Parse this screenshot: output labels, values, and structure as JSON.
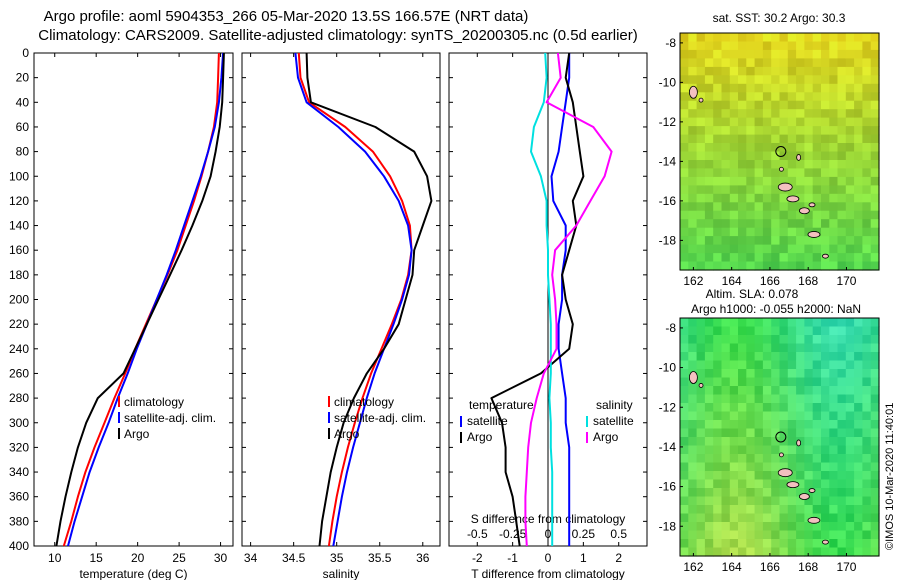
{
  "header": {
    "title_line1": "Argo profile: aoml 5904353_266 05-Mar-2020 13.5S 166.57E (NRT data)",
    "title_line2": "Climatology: CARS2009. Satellite-adjusted climatology: synTS_20200305.nc (0.5d earlier)"
  },
  "depth_axis": {
    "ticks": [
      "0",
      "20",
      "40",
      "60",
      "80",
      "100",
      "120",
      "140",
      "160",
      "180",
      "200",
      "220",
      "240",
      "260",
      "280",
      "300",
      "320",
      "340",
      "360",
      "380",
      "400"
    ]
  },
  "chart_data": [
    {
      "type": "line",
      "panel": "temperature",
      "xlabel": "temperature (deg C)",
      "ylabel": "depth",
      "xlim": [
        7.5,
        31.5
      ],
      "ylim": [
        0,
        400
      ],
      "xticks": [
        10,
        15,
        20,
        25,
        30
      ],
      "series": [
        {
          "name": "climatology",
          "color": "#ff0000",
          "x": [
            29.8,
            29.7,
            29.6,
            29.2,
            28.5,
            27.7,
            26.8,
            25.8,
            24.8,
            23.6,
            22.3,
            21.0,
            19.7,
            18.5,
            17.2,
            16.0,
            14.8,
            13.7,
            12.8,
            12.0,
            11.1
          ],
          "y": [
            0,
            20,
            40,
            60,
            80,
            100,
            120,
            140,
            160,
            180,
            200,
            220,
            240,
            260,
            280,
            300,
            320,
            340,
            360,
            380,
            400
          ]
        },
        {
          "name": "satellite-adj. clim.",
          "color": "#0000ff",
          "x": [
            30.3,
            30.1,
            29.8,
            29.3,
            28.5,
            27.6,
            26.6,
            25.6,
            24.6,
            23.5,
            22.3,
            21.1,
            19.9,
            18.8,
            17.6,
            16.5,
            15.3,
            14.2,
            13.3,
            12.4,
            11.6
          ],
          "y": [
            0,
            20,
            40,
            60,
            80,
            100,
            120,
            140,
            160,
            180,
            200,
            220,
            240,
            260,
            280,
            300,
            320,
            340,
            360,
            380,
            400
          ]
        },
        {
          "name": "Argo",
          "color": "#000000",
          "x": [
            30.4,
            30.3,
            30.2,
            29.9,
            29.4,
            28.8,
            27.8,
            26.6,
            25.3,
            23.9,
            22.5,
            21.1,
            19.7,
            18.3,
            15.2,
            13.8,
            12.8,
            12.0,
            11.3,
            10.7,
            10.2
          ],
          "y": [
            0,
            20,
            40,
            60,
            80,
            100,
            120,
            140,
            160,
            180,
            200,
            220,
            240,
            260,
            280,
            300,
            320,
            340,
            360,
            380,
            400
          ]
        }
      ],
      "legend": [
        "climatology",
        "satellite-adj. clim.",
        "Argo"
      ]
    },
    {
      "type": "line",
      "panel": "salinity",
      "xlabel": "salinity",
      "ylabel": "depth",
      "xlim": [
        33.9,
        36.2
      ],
      "ylim": [
        0,
        400
      ],
      "xticks": [
        34,
        34.5,
        35,
        35.5,
        36
      ],
      "xticklabels": [
        "34",
        "34.5",
        "35",
        "35.5",
        "36"
      ],
      "series": [
        {
          "name": "climatology",
          "color": "#ff0000",
          "x": [
            34.56,
            34.58,
            34.68,
            35.1,
            35.42,
            35.62,
            35.76,
            35.85,
            35.87,
            35.83,
            35.75,
            35.64,
            35.52,
            35.4,
            35.3,
            35.21,
            35.13,
            35.06,
            35.0,
            34.95,
            34.91
          ],
          "y": [
            0,
            20,
            40,
            60,
            80,
            100,
            120,
            140,
            160,
            180,
            200,
            220,
            240,
            260,
            280,
            300,
            320,
            340,
            360,
            380,
            400
          ]
        },
        {
          "name": "satellite-adj. clim.",
          "color": "#0000ff",
          "x": [
            34.52,
            34.55,
            34.65,
            35.02,
            35.33,
            35.55,
            35.72,
            35.83,
            35.87,
            35.84,
            35.76,
            35.66,
            35.55,
            35.44,
            35.35,
            35.27,
            35.19,
            35.12,
            35.06,
            35.01,
            34.96
          ],
          "y": [
            0,
            20,
            40,
            60,
            80,
            100,
            120,
            140,
            160,
            180,
            200,
            220,
            240,
            260,
            280,
            300,
            320,
            340,
            360,
            380,
            400
          ]
        },
        {
          "name": "Argo",
          "color": "#000000",
          "x": [
            34.65,
            34.66,
            34.7,
            35.45,
            35.9,
            36.05,
            36.1,
            36.0,
            35.9,
            35.88,
            35.8,
            35.72,
            35.55,
            35.35,
            35.2,
            35.08,
            35.0,
            34.93,
            34.88,
            34.83,
            34.8
          ],
          "y": [
            0,
            20,
            40,
            60,
            80,
            100,
            120,
            140,
            160,
            180,
            200,
            220,
            240,
            260,
            280,
            300,
            320,
            340,
            360,
            380,
            400
          ]
        }
      ],
      "legend": [
        "climatology",
        "satellite-adj. clim.",
        "Argo"
      ]
    },
    {
      "type": "line",
      "panel": "difference",
      "xlabel": "T difference from climatology",
      "xlabel_top": "S difference from climatology",
      "ylabel": "depth",
      "xlim": [
        -2.8,
        2.8
      ],
      "ylim": [
        0,
        400
      ],
      "xticks": [
        -2,
        -1,
        0,
        1,
        2
      ],
      "xticks_s": [
        -0.5,
        -0.25,
        0,
        0.25,
        0.5
      ],
      "xticklabels_s": [
        "-0.5",
        "-0.25",
        "0",
        "0.25",
        "0.5"
      ],
      "series": [
        {
          "name": "temperature satellite",
          "color": "#0000ff",
          "x": [
            0.6,
            0.6,
            0.5,
            0.4,
            0.3,
            0.1,
            0.15,
            0.5,
            0.5,
            0.4,
            0.4,
            0.3,
            0.3,
            0.4,
            0.5,
            0.5,
            0.6,
            0.6,
            0.6,
            0.6,
            0.6
          ],
          "y": [
            0,
            20,
            40,
            60,
            80,
            100,
            120,
            140,
            160,
            180,
            200,
            220,
            240,
            260,
            280,
            300,
            320,
            340,
            360,
            380,
            400
          ]
        },
        {
          "name": "temperature Argo",
          "color": "#000000",
          "x": [
            0.6,
            0.5,
            0.7,
            0.8,
            0.9,
            1.0,
            0.7,
            0.8,
            0.6,
            0.4,
            0.5,
            0.7,
            0.6,
            -0.2,
            -1.6,
            -1.3,
            -1.2,
            -1.2,
            -1.0,
            -0.9,
            -0.8
          ],
          "y": [
            0,
            20,
            40,
            60,
            80,
            100,
            120,
            140,
            160,
            180,
            200,
            220,
            240,
            260,
            280,
            300,
            320,
            340,
            360,
            380,
            400
          ]
        },
        {
          "name": "salinity satellite",
          "color": "#00e0e0",
          "x": [
            -0.02,
            -0.01,
            -0.03,
            -0.1,
            -0.12,
            -0.05,
            -0.01,
            -0.01,
            0,
            0,
            0.01,
            0.02,
            0.02,
            0.02,
            0.01,
            0.02,
            0.02,
            0.03,
            0.03,
            0.03,
            0.03
          ],
          "y": [
            0,
            20,
            40,
            60,
            80,
            100,
            120,
            140,
            160,
            180,
            200,
            220,
            240,
            260,
            280,
            300,
            320,
            340,
            360,
            380,
            400
          ]
        },
        {
          "name": "salinity Argo",
          "color": "#ff00ff",
          "x": [
            0.07,
            0.09,
            -0.01,
            0.32,
            0.45,
            0.4,
            0.3,
            0.2,
            0.05,
            0.03,
            0.05,
            0.06,
            0.06,
            -0.03,
            -0.08,
            -0.12,
            -0.14,
            -0.15,
            -0.16,
            -0.16,
            -0.15
          ],
          "y": [
            0,
            20,
            40,
            60,
            80,
            100,
            120,
            140,
            160,
            180,
            200,
            220,
            240,
            260,
            280,
            300,
            320,
            340,
            360,
            380,
            400
          ]
        }
      ],
      "legend_groups": {
        "temperature_title": "temperature",
        "salinity_title": "salinity",
        "satellite": "satellite",
        "argo": "Argo"
      }
    }
  ],
  "maps": {
    "top_title": "sat. SST: 30.2 Argo: 30.3",
    "bottom_title_line1": "Altim. SLA: 0.078",
    "bottom_title_line2": "Argo h1000: -0.055 h2000: NaN",
    "lon_ticks": [
      "162",
      "164",
      "166",
      "168",
      "170"
    ],
    "lat_ticks": [
      "-8",
      "-10",
      "-12",
      "-14",
      "-16",
      "-18"
    ],
    "marker_lon": 166.57,
    "marker_lat": -13.5
  },
  "credit": "©IMOS 10-Mar-2020 11:40:01"
}
